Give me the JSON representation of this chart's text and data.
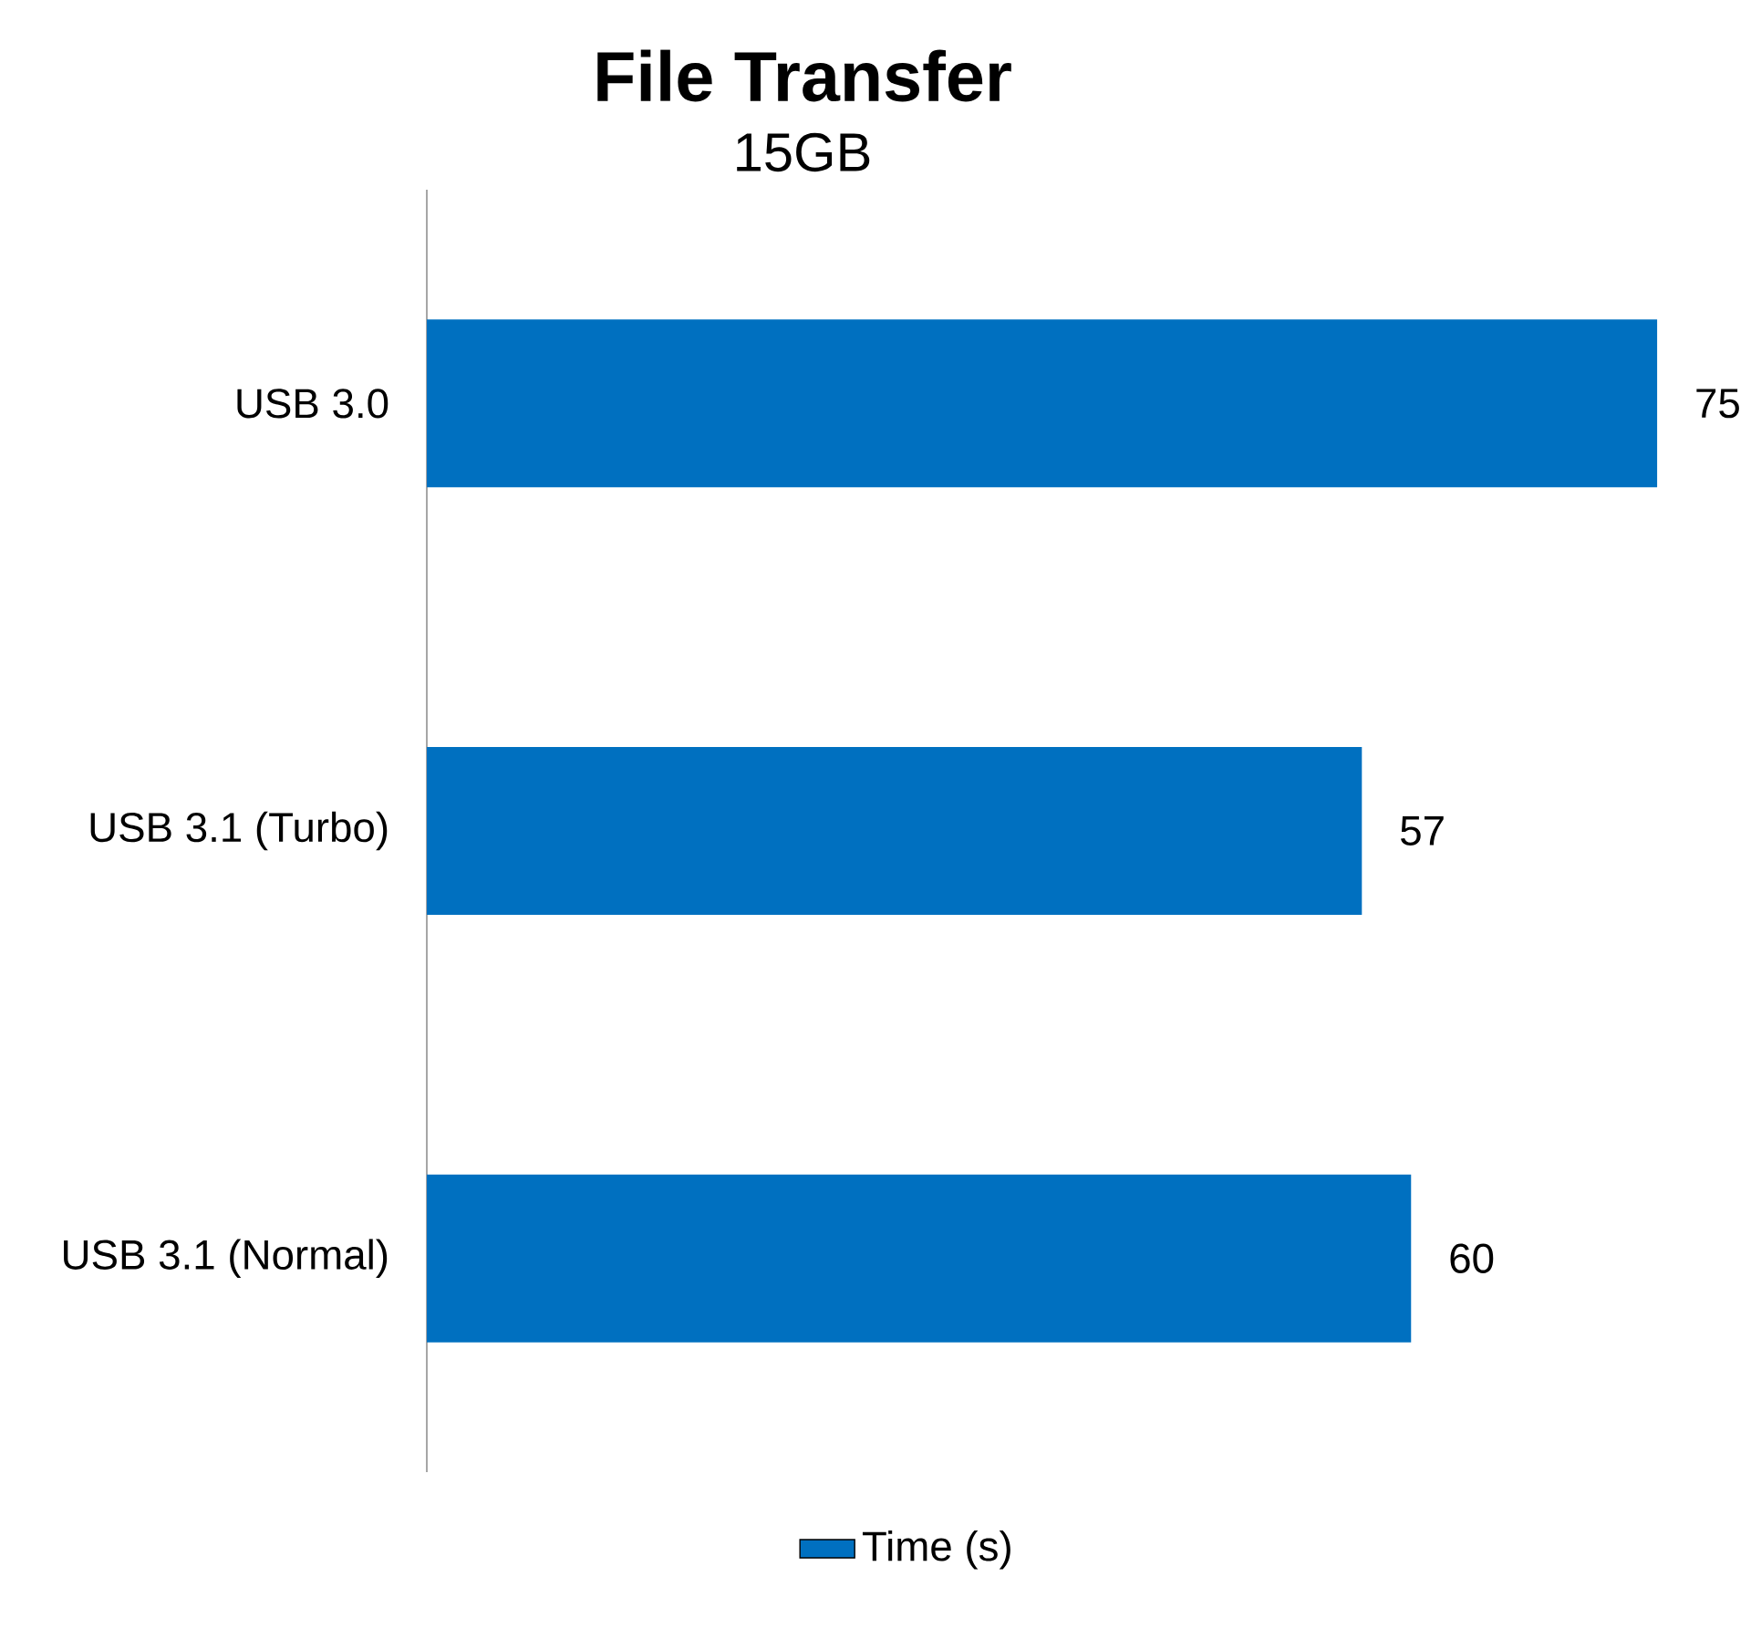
{
  "chart_data": {
    "type": "bar",
    "orientation": "horizontal",
    "title": "File Transfer",
    "subtitle": "15GB",
    "categories": [
      "USB 3.0",
      "USB 3.1 (Turbo)",
      "USB 3.1 (Normal)"
    ],
    "series": [
      {
        "name": "Time (s)",
        "color": "#0070c0",
        "values": [
          75,
          57,
          60
        ]
      }
    ],
    "data_labels": true,
    "legend": "bottom",
    "grid": false
  }
}
